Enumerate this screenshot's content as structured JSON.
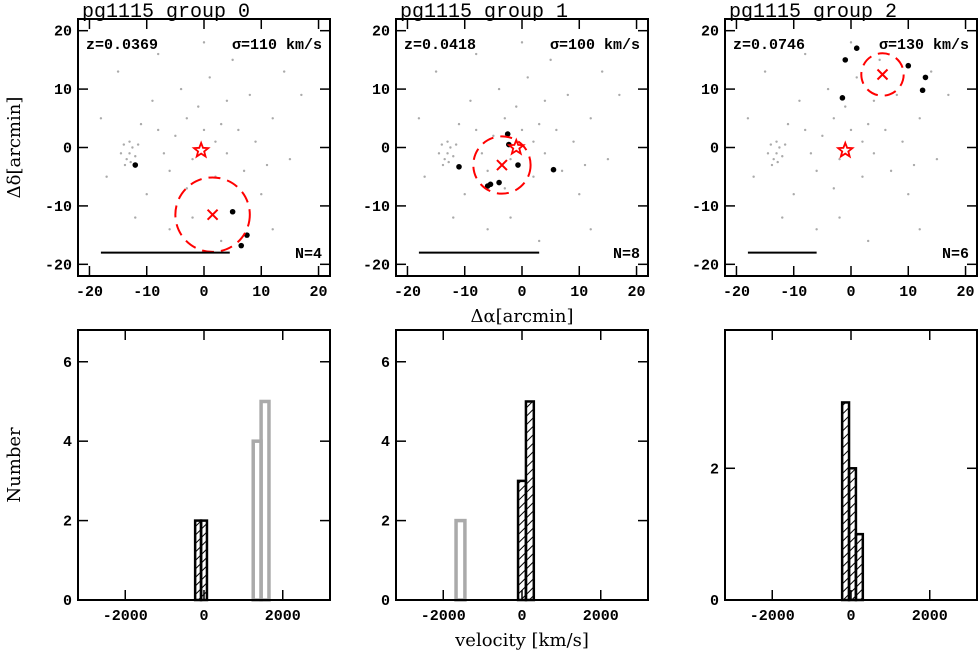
{
  "chart_data": [
    {
      "type": "scatter",
      "title": "pg1115 group 0",
      "ylabel": "Δδ[arcmin]",
      "annotations": {
        "redshift": "z=0.0369",
        "dispersion": "σ=110 km/s",
        "count": "N=4"
      },
      "xlim": [
        -22,
        22
      ],
      "ylim": [
        -22,
        22
      ],
      "xticks": [
        -20,
        -10,
        0,
        10,
        20
      ],
      "yticks": [
        -20,
        -10,
        0,
        10,
        20
      ],
      "series": [
        {
          "color": "#aaaaaa",
          "x": [
            -13,
            -12.5,
            -13.5,
            -14,
            -12,
            -13,
            -14.5,
            -12.8,
            -11.5,
            -13.8,
            -5,
            -3,
            -2,
            0,
            2,
            4,
            3,
            -6,
            -8,
            6,
            -4,
            1,
            -9,
            8,
            5,
            -15,
            12,
            15,
            10,
            -10,
            -18,
            -17,
            17,
            -2,
            -6,
            3,
            12,
            -12,
            0,
            -8,
            2,
            -1,
            7,
            -7,
            9,
            14,
            -3,
            4,
            -11,
            11
          ],
          "y": [
            -1,
            0,
            -2,
            0.5,
            -1.5,
            1,
            -1,
            -2.5,
            0.5,
            -3,
            2,
            5,
            -2,
            3,
            1,
            -1,
            4,
            -4,
            3,
            3,
            10,
            12,
            8,
            9,
            15,
            13,
            5,
            -2,
            -8,
            -8,
            5,
            -5,
            9,
            -12,
            -14,
            -16,
            -14,
            -12,
            18,
            16,
            -5,
            7,
            -4,
            -1,
            1,
            13,
            -7,
            8,
            4,
            -3
          ]
        },
        {
          "color": "#000000",
          "x": [
            -12,
            5,
            7.5,
            6.5
          ],
          "y": [
            -3,
            -11,
            -15,
            -16.8
          ]
        }
      ],
      "star": {
        "x": -0.5,
        "y": -0.5,
        "color": "#ff0000"
      },
      "center": {
        "x": 1.5,
        "y": -11.5,
        "radius": 6.5,
        "color": "#ff0000"
      },
      "scale_bar": {
        "x": [
          -18,
          4.5
        ],
        "y": -18
      }
    },
    {
      "type": "scatter",
      "title": "pg1115 group 1",
      "xlabel": "Δα[arcmin]",
      "annotations": {
        "redshift": "z=0.0418",
        "dispersion": "σ=100 km/s",
        "count": "N=8"
      },
      "xlim": [
        -22,
        22
      ],
      "ylim": [
        -22,
        22
      ],
      "xticks": [
        -20,
        -10,
        0,
        10,
        20
      ],
      "yticks": [
        -20,
        -10,
        0,
        10,
        20
      ],
      "series": [
        {
          "color": "#aaaaaa",
          "x": [
            -13,
            -12.5,
            -13.5,
            -14,
            -12,
            -13,
            -14.5,
            -12.8,
            -11.5,
            -13.8,
            -5,
            -3,
            -2,
            0,
            2,
            4,
            3,
            -6,
            -8,
            6,
            -4,
            1,
            -9,
            8,
            5,
            -15,
            12,
            15,
            10,
            -10,
            -18,
            -17,
            17,
            -2,
            -6,
            3,
            12,
            -12,
            0,
            -8,
            2,
            -1,
            7,
            -7,
            9,
            14,
            -3,
            4,
            -11,
            11
          ],
          "y": [
            -1,
            0,
            -2,
            0.5,
            -1.5,
            1,
            -1,
            -2.5,
            0.5,
            -3,
            2,
            5,
            -2,
            3,
            1,
            -1,
            4,
            -4,
            3,
            3,
            10,
            12,
            8,
            9,
            15,
            13,
            5,
            -2,
            -8,
            -8,
            5,
            -5,
            9,
            -12,
            -14,
            -16,
            -14,
            -12,
            18,
            16,
            -5,
            7,
            -4,
            -1,
            1,
            13,
            -7,
            8,
            4,
            -3
          ]
        },
        {
          "color": "#000000",
          "x": [
            -11,
            -5.5,
            -6,
            -4,
            -2.5,
            -2.3,
            -0.7,
            5.5
          ],
          "y": [
            -3.3,
            -6.3,
            -6.6,
            -6,
            2.3,
            0.5,
            -3,
            -3.8
          ]
        }
      ],
      "star": {
        "x": -1,
        "y": 0,
        "color": "#ff0000"
      },
      "center": {
        "x": -3.5,
        "y": -3,
        "radius": 5,
        "color": "#ff0000"
      },
      "scale_bar": {
        "x": [
          -18,
          3
        ],
        "y": -18
      }
    },
    {
      "type": "scatter",
      "title": "pg1115 group 2",
      "annotations": {
        "redshift": "z=0.0746",
        "dispersion": "σ=130 km/s",
        "count": "N=6"
      },
      "xlim": [
        -22,
        22
      ],
      "ylim": [
        -22,
        22
      ],
      "xticks": [
        -20,
        -10,
        0,
        10,
        20
      ],
      "yticks": [
        -20,
        -10,
        0,
        10,
        20
      ],
      "series": [
        {
          "color": "#aaaaaa",
          "x": [
            -13,
            -12.5,
            -13.5,
            -14,
            -12,
            -13,
            -14.5,
            -12.8,
            -11.5,
            -13.8,
            -5,
            -3,
            -2,
            0,
            2,
            4,
            3,
            -6,
            -8,
            6,
            -4,
            1,
            -9,
            8,
            5,
            -15,
            12,
            15,
            10,
            -10,
            -18,
            -17,
            17,
            -2,
            -6,
            3,
            12,
            -12,
            0,
            -8,
            2,
            -1,
            7,
            -7,
            9,
            14,
            -3,
            4,
            -11,
            11
          ],
          "y": [
            -1,
            0,
            -2,
            0.5,
            -1.5,
            1,
            -1,
            -2.5,
            0.5,
            -3,
            2,
            5,
            -2,
            3,
            1,
            -1,
            4,
            -4,
            3,
            3,
            10,
            12,
            8,
            9,
            15,
            13,
            5,
            -2,
            -8,
            -8,
            5,
            -5,
            9,
            -12,
            -14,
            -16,
            -14,
            -12,
            18,
            16,
            -5,
            7,
            -4,
            -1,
            1,
            13,
            -7,
            8,
            4,
            -3
          ]
        },
        {
          "color": "#000000",
          "x": [
            -1,
            1,
            -1.5,
            10,
            13,
            12.5
          ],
          "y": [
            15,
            17,
            8.5,
            14,
            12,
            9.8
          ]
        }
      ],
      "star": {
        "x": -1,
        "y": -0.5,
        "color": "#ff0000"
      },
      "center": {
        "x": 5.5,
        "y": 12.5,
        "radius": 3.7,
        "color": "#ff0000"
      },
      "scale_bar": {
        "x": [
          -18,
          -6
        ],
        "y": -18
      }
    },
    {
      "type": "histogram",
      "ylabel": "Number",
      "xlim": [
        -3200,
        3200
      ],
      "ylim": [
        0,
        6.8
      ],
      "xticks": [
        -2000,
        0,
        2000
      ],
      "yticks": [
        0,
        2,
        4,
        6
      ],
      "series": [
        {
          "color": "#000000",
          "hatch": true,
          "bins": [
            -225,
            -75,
            75
          ],
          "counts": [
            2,
            2
          ]
        },
        {
          "color": "#aaaaaa",
          "hatch": false,
          "bins": [
            1250,
            1450,
            1650
          ],
          "counts": [
            4,
            5
          ]
        }
      ]
    },
    {
      "type": "histogram",
      "xlabel": "velocity [km/s]",
      "xlim": [
        -3200,
        3200
      ],
      "ylim": [
        0,
        6.8
      ],
      "xticks": [
        -2000,
        0,
        2000
      ],
      "yticks": [
        0,
        2,
        4,
        6
      ],
      "series": [
        {
          "color": "#000000",
          "hatch": true,
          "bins": [
            -100,
            100,
            300
          ],
          "counts": [
            3,
            5
          ]
        },
        {
          "color": "#aaaaaa",
          "hatch": false,
          "bins": [
            -1675,
            -1450
          ],
          "counts": [
            2
          ]
        }
      ]
    },
    {
      "type": "histogram",
      "xlim": [
        -3200,
        3200
      ],
      "ylim": [
        0,
        4.1
      ],
      "xticks": [
        -2000,
        0,
        2000
      ],
      "yticks": [
        0,
        2
      ],
      "series": [
        {
          "color": "#000000",
          "hatch": true,
          "bins": [
            -225,
            -50,
            125,
            300
          ],
          "counts": [
            3,
            2,
            1
          ]
        }
      ]
    }
  ]
}
